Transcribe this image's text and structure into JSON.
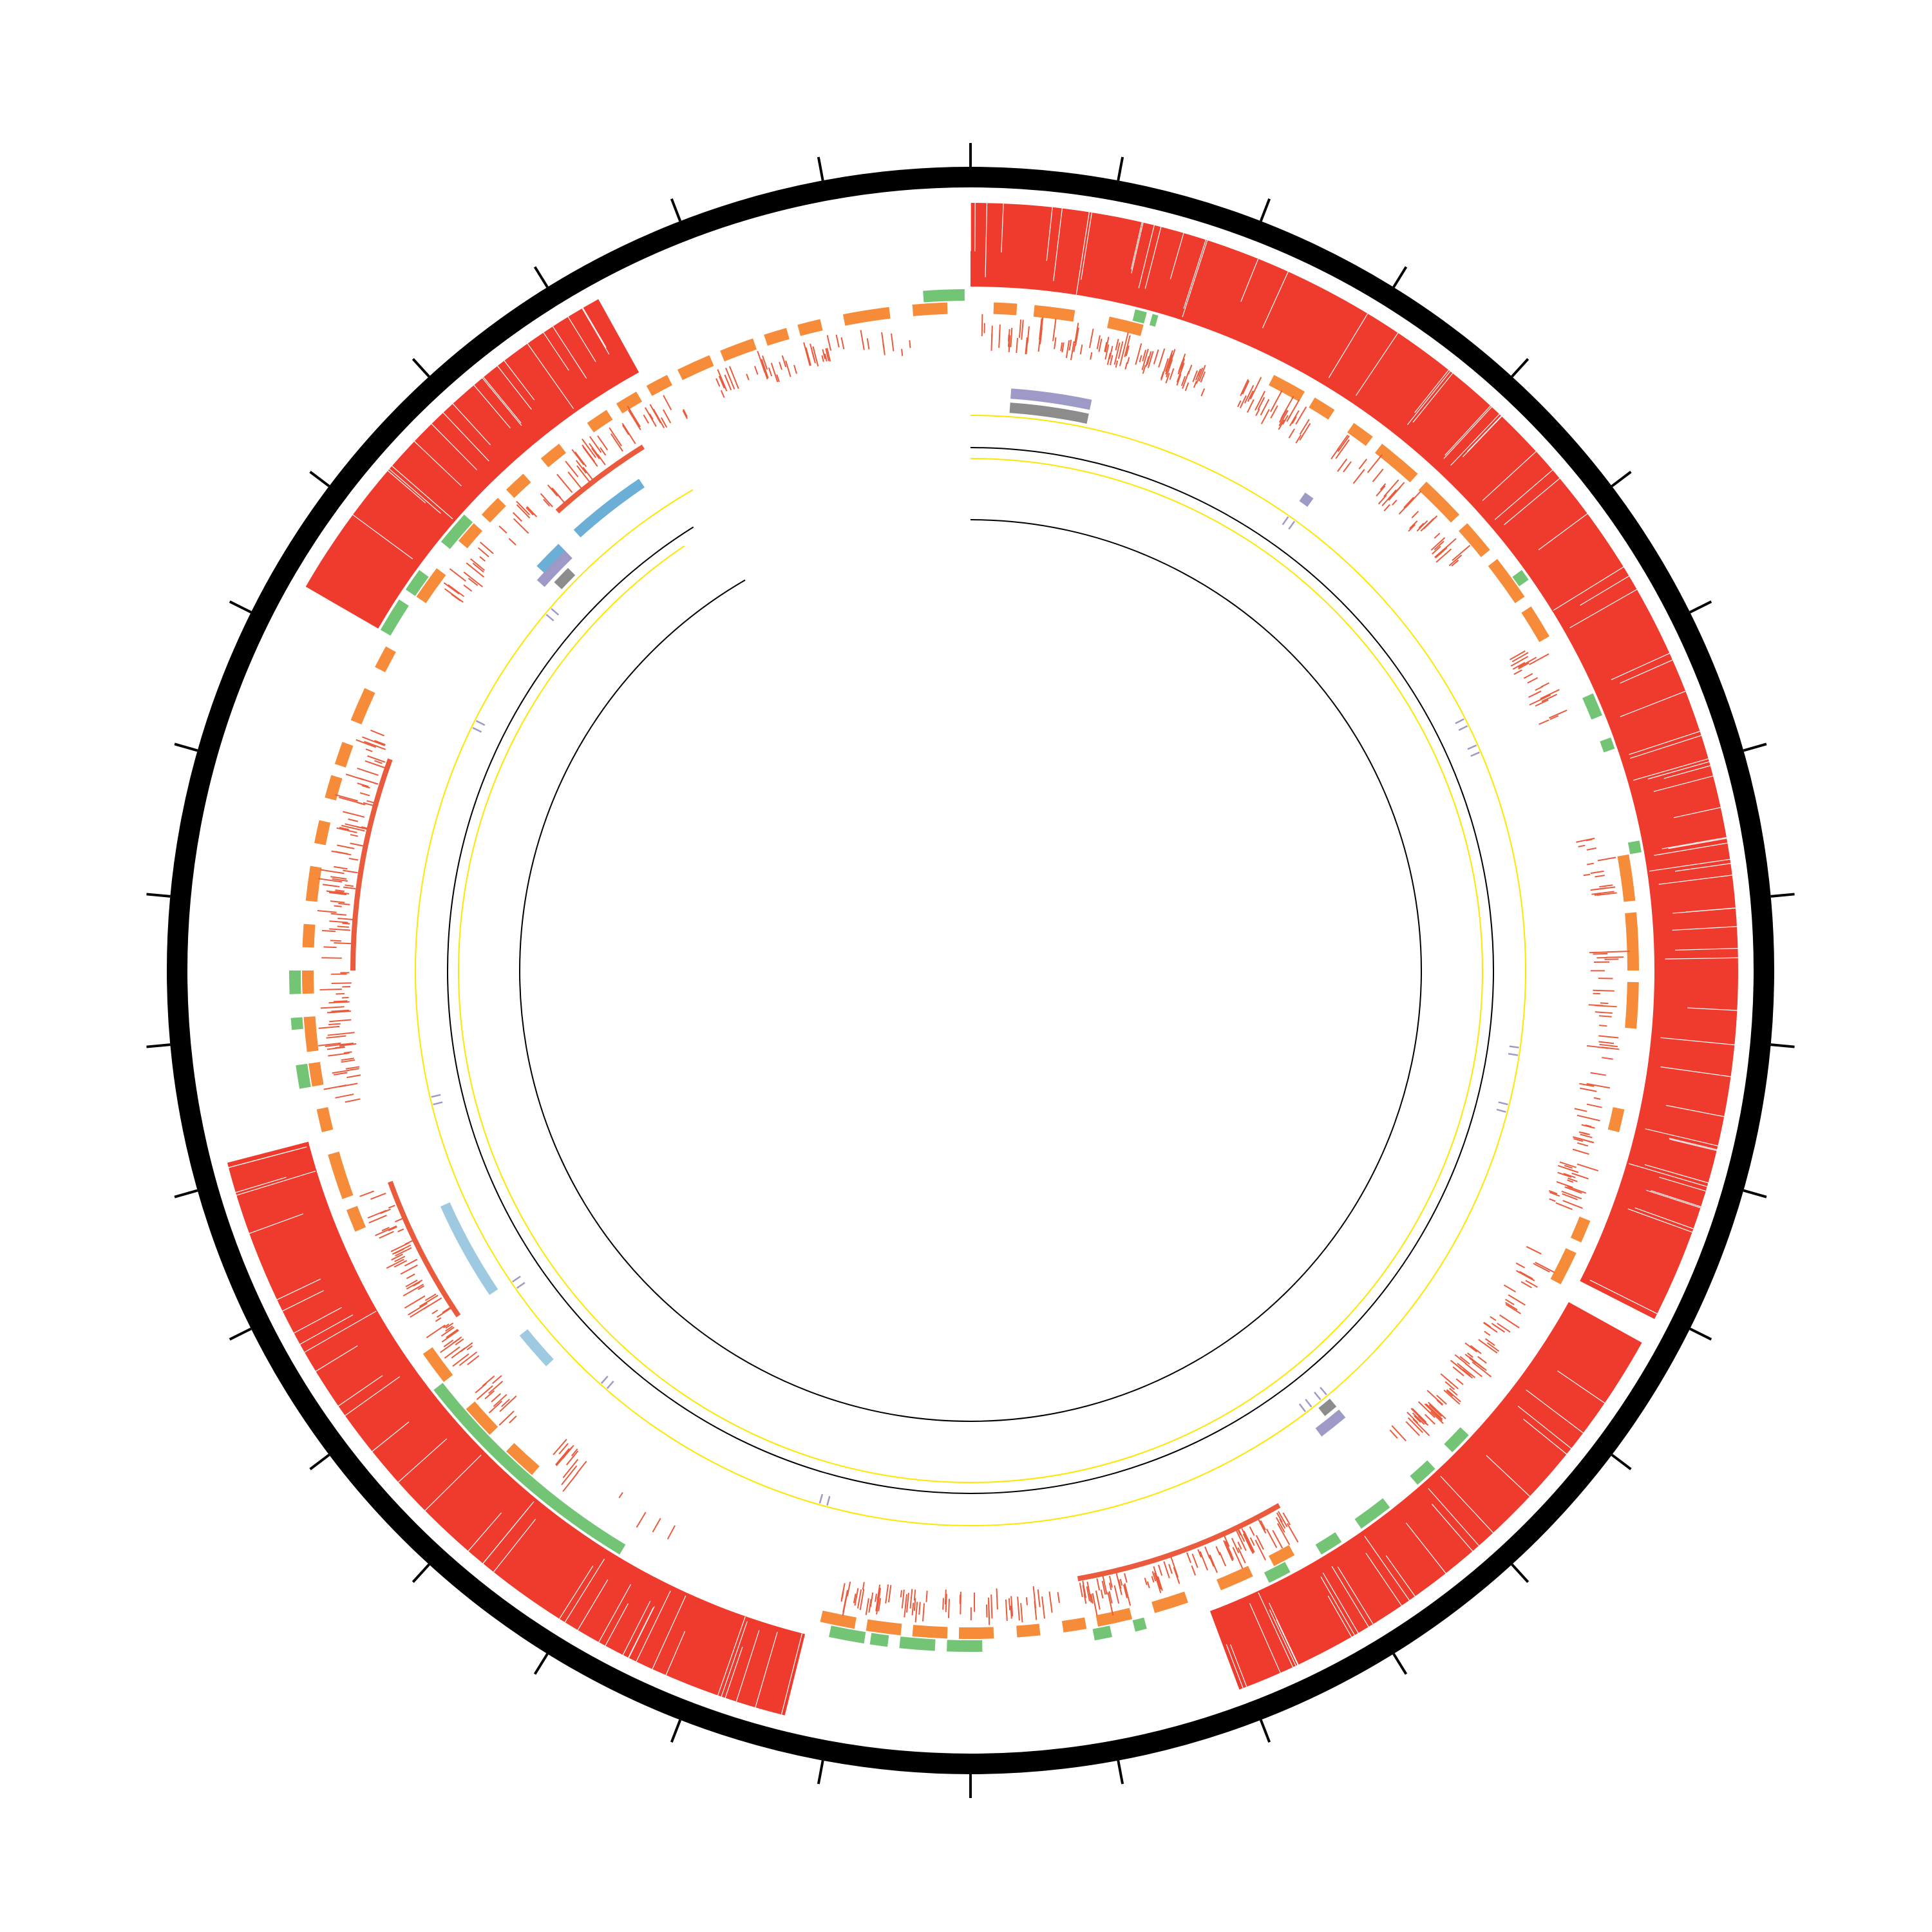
{
  "colors": {
    "ideogram": "#000000",
    "tick": "#000000",
    "identity": "#ee3b2e",
    "orange": "#f68b3a",
    "red_tick": "#ea5a3c",
    "green": "#74c476",
    "blue": "#6baed6",
    "light_blue": "#9ecae1",
    "purple": "#9e9ac8",
    "gray": "#8c8c8c",
    "yellow": "#ffe600",
    "inner_line": "#000000"
  },
  "ideogram": {
    "tick_count": 34
  },
  "identity_blocks": [
    {
      "start": 0.0,
      "end": 117.0
    },
    {
      "start": 119.0,
      "end": 159.5
    },
    {
      "start": 194.0,
      "end": 255.5
    },
    {
      "start": 300.0,
      "end": 331.0
    }
  ],
  "orange_segments": [
    [
      2,
      4
    ],
    [
      5.5,
      9
    ],
    [
      12,
      15
    ],
    [
      27,
      30
    ],
    [
      31,
      33
    ],
    [
      35,
      37
    ],
    [
      38,
      42
    ],
    [
      43,
      47
    ],
    [
      48,
      51
    ],
    [
      52,
      56
    ],
    [
      57,
      60
    ],
    [
      80,
      84
    ],
    [
      85,
      90
    ],
    [
      91,
      95
    ],
    [
      102,
      104
    ],
    [
      112,
      114
    ],
    [
      115,
      118
    ],
    [
      151,
      153
    ],
    [
      155,
      158
    ],
    [
      161,
      164
    ],
    [
      166,
      169
    ],
    [
      170,
      172
    ],
    [
      174,
      176
    ],
    [
      178,
      181
    ],
    [
      182,
      185
    ],
    [
      186,
      189
    ],
    [
      190,
      193
    ],
    [
      221,
      224
    ],
    [
      226,
      229
    ],
    [
      232,
      235
    ],
    [
      247,
      249
    ],
    [
      250,
      254
    ],
    [
      256,
      258
    ],
    [
      260,
      262
    ],
    [
      263,
      266
    ],
    [
      268,
      270
    ],
    [
      272,
      274
    ],
    [
      276,
      279
    ],
    [
      281,
      283
    ],
    [
      285,
      287
    ],
    [
      288,
      290
    ],
    [
      292,
      295
    ],
    [
      297,
      299
    ],
    [
      304,
      307
    ],
    [
      310,
      312
    ],
    [
      313,
      315
    ],
    [
      316,
      318
    ],
    [
      320,
      322
    ],
    [
      325,
      327
    ],
    [
      328,
      330
    ],
    [
      331,
      333
    ],
    [
      334,
      337
    ],
    [
      338,
      341
    ],
    [
      342,
      344
    ],
    [
      345,
      347
    ],
    [
      349,
      353
    ],
    [
      355,
      358
    ]
  ],
  "green_segments": [
    [
      14,
      15
    ],
    [
      15.5,
      16
    ],
    [
      54,
      55
    ],
    [
      66,
      68
    ],
    [
      70,
      71
    ],
    [
      79,
      80
    ],
    [
      133,
      135
    ],
    [
      137,
      139
    ],
    [
      142,
      145
    ],
    [
      147,
      149
    ],
    [
      152,
      154
    ],
    [
      165,
      166
    ],
    [
      168,
      169.5
    ],
    [
      179,
      182
    ],
    [
      183,
      186
    ],
    [
      187,
      188.5
    ],
    [
      189,
      192
    ],
    [
      211,
      232
    ],
    [
      260,
      262
    ],
    [
      265,
      266
    ],
    [
      268,
      270
    ],
    [
      300,
      303
    ],
    [
      304,
      306
    ],
    [
      309,
      312
    ],
    [
      356,
      359.5
    ]
  ],
  "blue_segments": [
    [
      313,
      316
    ],
    [
      318,
      326
    ]
  ],
  "light_blue_segments": [
    [
      236,
      246
    ],
    [
      227,
      231
    ]
  ],
  "purple_segments": [
    [
      4,
      12
    ],
    [
      35,
      36
    ],
    [
      140,
      143
    ],
    [
      312,
      316
    ]
  ],
  "gray_segments": [
    [
      4,
      12
    ],
    [
      140,
      141.5
    ],
    [
      313,
      315
    ]
  ],
  "tick_track": [
    {
      "start": 1,
      "end": 22,
      "n": 90
    },
    {
      "start": 25,
      "end": 32,
      "n": 30
    },
    {
      "start": 35,
      "end": 50,
      "n": 40
    },
    {
      "start": 60,
      "end": 67,
      "n": 20
    },
    {
      "start": 78,
      "end": 84,
      "n": 15
    },
    {
      "start": 88,
      "end": 112,
      "n": 60
    },
    {
      "start": 116,
      "end": 138,
      "n": 70
    },
    {
      "start": 150,
      "end": 170,
      "n": 80
    },
    {
      "start": 172,
      "end": 192,
      "n": 60
    },
    {
      "start": 208,
      "end": 222,
      "n": 15
    },
    {
      "start": 225,
      "end": 250,
      "n": 70
    },
    {
      "start": 258,
      "end": 292,
      "n": 100
    },
    {
      "start": 305,
      "end": 333,
      "n": 60
    },
    {
      "start": 336,
      "end": 355,
      "n": 40
    }
  ],
  "marker_track": [
    35,
    63,
    66,
    98,
    104,
    140,
    142,
    195,
    221,
    235,
    256,
    296,
    310
  ]
}
